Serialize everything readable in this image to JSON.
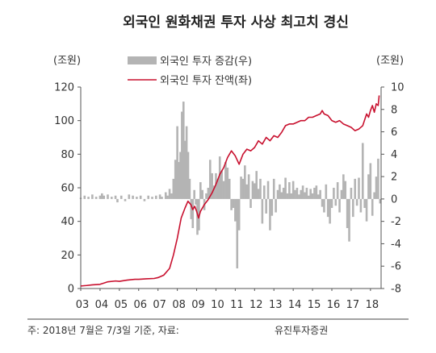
{
  "chart_data": {
    "type": "bar+line",
    "title": "외국인 원화채권 투자 사상 최고치 경신",
    "y_left": {
      "unit": "(조원)",
      "range": [
        0,
        120
      ],
      "ticks": [
        "0",
        "20",
        "40",
        "60",
        "80",
        "100",
        "120"
      ]
    },
    "y_right": {
      "unit": "(조원)",
      "range": [
        -8,
        10
      ],
      "ticks": [
        "-8",
        "-6",
        "-4",
        "-2",
        "0",
        "2",
        "4",
        "6",
        "8",
        "10"
      ]
    },
    "x": {
      "ticks": [
        "03",
        "04",
        "05",
        "06",
        "07",
        "08",
        "09",
        "10",
        "11",
        "12",
        "13",
        "14",
        "15",
        "16",
        "17",
        "18"
      ]
    },
    "legend_placement": "top",
    "series": [
      {
        "name": "외국인 투자 증감(우)",
        "kind": "bar",
        "axis": "right",
        "color": "#b4b4b4",
        "points": [
          [
            2003.0,
            0.1
          ],
          [
            2003.2,
            0.3
          ],
          [
            2003.4,
            0.2
          ],
          [
            2003.6,
            0.4
          ],
          [
            2003.8,
            0.2
          ],
          [
            2004.0,
            0.3
          ],
          [
            2004.1,
            0.5
          ],
          [
            2004.2,
            0.3
          ],
          [
            2004.4,
            0.4
          ],
          [
            2004.6,
            0.2
          ],
          [
            2004.8,
            0.3
          ],
          [
            2004.9,
            -0.3
          ],
          [
            2005.1,
            0.3
          ],
          [
            2005.3,
            -0.2
          ],
          [
            2005.5,
            0.4
          ],
          [
            2005.7,
            0.3
          ],
          [
            2005.9,
            0.2
          ],
          [
            2006.1,
            0.3
          ],
          [
            2006.3,
            -0.2
          ],
          [
            2006.5,
            0.3
          ],
          [
            2006.7,
            0.2
          ],
          [
            2006.9,
            0.3
          ],
          [
            2007.1,
            0.4
          ],
          [
            2007.2,
            0.2
          ],
          [
            2007.4,
            0.6
          ],
          [
            2007.5,
            0.3
          ],
          [
            2007.6,
            0.9
          ],
          [
            2007.7,
            0.5
          ],
          [
            2007.8,
            1.8
          ],
          [
            2007.9,
            3.5
          ],
          [
            2008.0,
            6.5
          ],
          [
            2008.08,
            3.3
          ],
          [
            2008.16,
            4.2
          ],
          [
            2008.24,
            7.8
          ],
          [
            2008.32,
            8.7
          ],
          [
            2008.4,
            5.2
          ],
          [
            2008.48,
            6.5
          ],
          [
            2008.56,
            4.2
          ],
          [
            2008.64,
            1.8
          ],
          [
            2008.72,
            -1.8
          ],
          [
            2008.8,
            -2.6
          ],
          [
            2008.88,
            0.8
          ],
          [
            2008.96,
            -0.5
          ],
          [
            2009.04,
            -3.2
          ],
          [
            2009.12,
            -2.8
          ],
          [
            2009.2,
            1.5
          ],
          [
            2009.3,
            0.8
          ],
          [
            2009.4,
            -1.0
          ],
          [
            2009.5,
            0.5
          ],
          [
            2009.6,
            1.0
          ],
          [
            2009.7,
            3.5
          ],
          [
            2009.8,
            2.3
          ],
          [
            2009.9,
            1.2
          ],
          [
            2010.0,
            2.3
          ],
          [
            2010.1,
            1.8
          ],
          [
            2010.2,
            3.8
          ],
          [
            2010.3,
            2.5
          ],
          [
            2010.4,
            1.6
          ],
          [
            2010.5,
            3.3
          ],
          [
            2010.6,
            2.8
          ],
          [
            2010.7,
            1.8
          ],
          [
            2010.8,
            -1.0
          ],
          [
            2010.9,
            -0.8
          ],
          [
            2011.0,
            -2.0
          ],
          [
            2011.1,
            -6.2
          ],
          [
            2011.2,
            -2.8
          ],
          [
            2011.3,
            2.0
          ],
          [
            2011.4,
            1.8
          ],
          [
            2011.5,
            3.0
          ],
          [
            2011.6,
            1.3
          ],
          [
            2011.7,
            2.2
          ],
          [
            2011.8,
            -0.8
          ],
          [
            2011.9,
            1.6
          ],
          [
            2012.0,
            1.4
          ],
          [
            2012.1,
            2.5
          ],
          [
            2012.2,
            0.9
          ],
          [
            2012.3,
            1.8
          ],
          [
            2012.4,
            -2.2
          ],
          [
            2012.5,
            1.2
          ],
          [
            2012.6,
            -1.3
          ],
          [
            2012.7,
            1.6
          ],
          [
            2012.8,
            -2.8
          ],
          [
            2012.9,
            -1.5
          ],
          [
            2013.0,
            1.8
          ],
          [
            2013.1,
            -1.2
          ],
          [
            2013.2,
            0.8
          ],
          [
            2013.3,
            1.3
          ],
          [
            2013.4,
            0.6
          ],
          [
            2013.5,
            1.0
          ],
          [
            2013.6,
            1.9
          ],
          [
            2013.7,
            0.5
          ],
          [
            2013.8,
            1.5
          ],
          [
            2013.9,
            0.5
          ],
          [
            2014.0,
            1.6
          ],
          [
            2014.1,
            0.8
          ],
          [
            2014.2,
            1.0
          ],
          [
            2014.3,
            0.4
          ],
          [
            2014.4,
            0.8
          ],
          [
            2014.5,
            1.2
          ],
          [
            2014.6,
            0.6
          ],
          [
            2014.7,
            1.0
          ],
          [
            2014.8,
            0.3
          ],
          [
            2014.9,
            0.9
          ],
          [
            2015.0,
            0.5
          ],
          [
            2015.1,
            1.0
          ],
          [
            2015.2,
            1.2
          ],
          [
            2015.3,
            0.4
          ],
          [
            2015.4,
            0.8
          ],
          [
            2015.5,
            -0.7
          ],
          [
            2015.6,
            -1.2
          ],
          [
            2015.7,
            1.3
          ],
          [
            2015.8,
            -1.6
          ],
          [
            2015.9,
            -2.2
          ],
          [
            2016.0,
            -0.8
          ],
          [
            2016.1,
            1.0
          ],
          [
            2016.2,
            -0.6
          ],
          [
            2016.3,
            1.5
          ],
          [
            2016.4,
            -1.2
          ],
          [
            2016.5,
            0.8
          ],
          [
            2016.6,
            2.2
          ],
          [
            2016.7,
            1.6
          ],
          [
            2016.8,
            -2.6
          ],
          [
            2016.9,
            -3.8
          ],
          [
            2017.0,
            1.0
          ],
          [
            2017.1,
            -1.6
          ],
          [
            2017.2,
            1.8
          ],
          [
            2017.3,
            -0.6
          ],
          [
            2017.4,
            1.9
          ],
          [
            2017.5,
            -1.2
          ],
          [
            2017.6,
            5.0
          ],
          [
            2017.7,
            -0.8
          ],
          [
            2017.8,
            -2.0
          ],
          [
            2017.9,
            2.2
          ],
          [
            2018.0,
            3.2
          ],
          [
            2018.1,
            -1.5
          ],
          [
            2018.2,
            0.6
          ],
          [
            2018.3,
            2.0
          ],
          [
            2018.4,
            3.6
          ],
          [
            2018.5,
            -0.4
          ]
        ]
      },
      {
        "name": "외국인 투자 잔액(좌)",
        "kind": "line",
        "axis": "left",
        "color": "#c8102e",
        "points": [
          [
            2003.0,
            1.5
          ],
          [
            2003.3,
            1.8
          ],
          [
            2003.6,
            2.2
          ],
          [
            2004.0,
            2.5
          ],
          [
            2004.4,
            4.0
          ],
          [
            2004.8,
            4.5
          ],
          [
            2005.0,
            4.3
          ],
          [
            2005.4,
            5.0
          ],
          [
            2005.8,
            5.5
          ],
          [
            2006.0,
            5.5
          ],
          [
            2006.4,
            5.8
          ],
          [
            2006.8,
            6.0
          ],
          [
            2007.0,
            6.5
          ],
          [
            2007.3,
            8.0
          ],
          [
            2007.6,
            12.0
          ],
          [
            2007.8,
            20.0
          ],
          [
            2008.0,
            30.0
          ],
          [
            2008.2,
            42.0
          ],
          [
            2008.4,
            48.0
          ],
          [
            2008.55,
            52.0
          ],
          [
            2008.7,
            50.0
          ],
          [
            2008.8,
            47.0
          ],
          [
            2008.9,
            49.0
          ],
          [
            2009.0,
            46.0
          ],
          [
            2009.1,
            42.0
          ],
          [
            2009.2,
            46.0
          ],
          [
            2009.4,
            50.0
          ],
          [
            2009.6,
            53.0
          ],
          [
            2009.8,
            57.0
          ],
          [
            2010.0,
            62.0
          ],
          [
            2010.2,
            68.0
          ],
          [
            2010.4,
            72.0
          ],
          [
            2010.6,
            78.0
          ],
          [
            2010.8,
            82.0
          ],
          [
            2011.0,
            79.0
          ],
          [
            2011.2,
            74.0
          ],
          [
            2011.4,
            80.0
          ],
          [
            2011.6,
            83.0
          ],
          [
            2011.8,
            82.0
          ],
          [
            2012.0,
            84.0
          ],
          [
            2012.2,
            88.0
          ],
          [
            2012.4,
            86.0
          ],
          [
            2012.6,
            90.0
          ],
          [
            2012.8,
            88.0
          ],
          [
            2013.0,
            91.0
          ],
          [
            2013.2,
            90.0
          ],
          [
            2013.4,
            93.0
          ],
          [
            2013.6,
            97.0
          ],
          [
            2013.8,
            98.0
          ],
          [
            2014.0,
            98.0
          ],
          [
            2014.2,
            99.0
          ],
          [
            2014.4,
            100.0
          ],
          [
            2014.6,
            100.0
          ],
          [
            2014.8,
            102.0
          ],
          [
            2015.0,
            102.0
          ],
          [
            2015.2,
            103.0
          ],
          [
            2015.4,
            104.0
          ],
          [
            2015.5,
            106.0
          ],
          [
            2015.6,
            104.0
          ],
          [
            2015.8,
            103.0
          ],
          [
            2016.0,
            100.0
          ],
          [
            2016.2,
            99.0
          ],
          [
            2016.4,
            100.0
          ],
          [
            2016.6,
            98.0
          ],
          [
            2016.8,
            97.0
          ],
          [
            2017.0,
            96.0
          ],
          [
            2017.2,
            94.0
          ],
          [
            2017.4,
            95.0
          ],
          [
            2017.6,
            97.0
          ],
          [
            2017.8,
            104.0
          ],
          [
            2017.9,
            102.0
          ],
          [
            2018.0,
            106.0
          ],
          [
            2018.1,
            109.0
          ],
          [
            2018.2,
            105.0
          ],
          [
            2018.3,
            110.0
          ],
          [
            2018.4,
            109.0
          ],
          [
            2018.45,
            115.0
          ]
        ]
      }
    ]
  },
  "footer": {
    "note": "주: 2018년 7월은 7/3일 기준, 자료:",
    "source": "유진투자증권"
  }
}
